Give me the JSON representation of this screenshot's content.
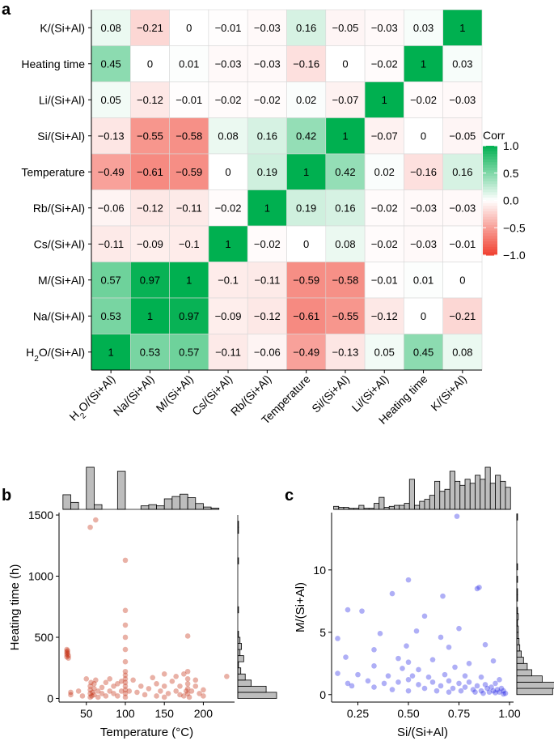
{
  "panel_labels": {
    "a": "a",
    "b": "b",
    "c": "c"
  },
  "chart_data": [
    {
      "type": "heatmap",
      "panel": "a",
      "variables": [
        "H2O/(Si+Al)",
        "Na/(Si+Al)",
        "M/(Si+Al)",
        "Cs/(Si+Al)",
        "Rb/(Si+Al)",
        "Temperature",
        "Si/(Si+Al)",
        "Li/(Si+Al)",
        "Heating time",
        "K/(Si+Al)"
      ],
      "row_labels_top_to_bottom": [
        "K/(Si+Al)",
        "Heating time",
        "Li/(Si+Al)",
        "Si/(Si+Al)",
        "Temperature",
        "Rb/(Si+Al)",
        "Cs/(Si+Al)",
        "M/(Si+Al)",
        "Na/(Si+Al)",
        "H2O/(Si+Al)"
      ],
      "col_labels": [
        "H2O/(Si+Al)",
        "Na/(Si+Al)",
        "M/(Si+Al)",
        "Cs/(Si+Al)",
        "Rb/(Si+Al)",
        "Temperature",
        "Si/(Si+Al)",
        "Li/(Si+Al)",
        "Heating time",
        "K/(Si+Al)"
      ],
      "matrix_rows_top_to_bottom": [
        [
          0.08,
          -0.21,
          0,
          -0.01,
          -0.03,
          0.16,
          -0.05,
          -0.03,
          0.03,
          1
        ],
        [
          0.45,
          0,
          0.01,
          -0.03,
          -0.03,
          -0.16,
          0,
          -0.02,
          1,
          0.03
        ],
        [
          0.05,
          -0.12,
          -0.01,
          -0.02,
          -0.02,
          0.02,
          -0.07,
          1,
          -0.02,
          -0.03
        ],
        [
          -0.13,
          -0.55,
          -0.58,
          0.08,
          0.16,
          0.42,
          1,
          -0.07,
          0,
          -0.05
        ],
        [
          -0.49,
          -0.61,
          -0.59,
          0,
          0.19,
          1,
          0.42,
          0.02,
          -0.16,
          0.16
        ],
        [
          -0.06,
          -0.12,
          -0.11,
          -0.02,
          1,
          0.19,
          0.16,
          -0.02,
          -0.03,
          -0.03
        ],
        [
          -0.11,
          -0.09,
          -0.1,
          1,
          -0.02,
          0,
          0.08,
          -0.02,
          -0.03,
          -0.01
        ],
        [
          0.57,
          0.97,
          1,
          -0.1,
          -0.11,
          -0.59,
          -0.58,
          -0.01,
          0.01,
          0
        ],
        [
          0.53,
          1,
          0.97,
          -0.09,
          -0.12,
          -0.61,
          -0.55,
          -0.12,
          0,
          -0.21
        ],
        [
          1,
          0.53,
          0.57,
          -0.11,
          -0.06,
          -0.49,
          -0.13,
          0.05,
          0.45,
          0.08
        ]
      ],
      "legend": {
        "title": "Corr",
        "ticks": [
          "1.0",
          "0.5",
          "0.0",
          "−0.5",
          "−1.0"
        ],
        "range": [
          -1,
          1
        ]
      },
      "colors": {
        "positive": "#00b050",
        "neutral": "#ffffff",
        "negative": "#f04030"
      }
    },
    {
      "type": "scatter",
      "panel": "b",
      "xlabel": "Temperature (°C)",
      "ylabel": "Heating time (h)",
      "xlim": [
        15,
        240
      ],
      "ylim": [
        -30,
        1520
      ],
      "xticks": [
        50,
        100,
        150,
        200
      ],
      "yticks": [
        0,
        500,
        1000,
        1500
      ],
      "color": "#c02000",
      "points": [
        [
          25,
          400
        ],
        [
          25,
          380
        ],
        [
          25,
          360
        ],
        [
          25,
          340
        ],
        [
          26,
          390
        ],
        [
          26,
          370
        ],
        [
          27,
          350
        ],
        [
          27,
          330
        ],
        [
          55,
          1400
        ],
        [
          62,
          1460
        ],
        [
          100,
          1130
        ],
        [
          100,
          720
        ],
        [
          100,
          600
        ],
        [
          100,
          500
        ],
        [
          100,
          400
        ],
        [
          100,
          300
        ],
        [
          180,
          510
        ],
        [
          30,
          50
        ],
        [
          30,
          30
        ],
        [
          40,
          60
        ],
        [
          45,
          20
        ],
        [
          50,
          160
        ],
        [
          55,
          10
        ],
        [
          55,
          40
        ],
        [
          55,
          70
        ],
        [
          55,
          100
        ],
        [
          56,
          130
        ],
        [
          57,
          20
        ],
        [
          58,
          50
        ],
        [
          60,
          30
        ],
        [
          60,
          80
        ],
        [
          60,
          120
        ],
        [
          62,
          150
        ],
        [
          65,
          10
        ],
        [
          65,
          60
        ],
        [
          70,
          40
        ],
        [
          70,
          90
        ],
        [
          75,
          20
        ],
        [
          75,
          130
        ],
        [
          80,
          160
        ],
        [
          80,
          60
        ],
        [
          85,
          40
        ],
        [
          85,
          100
        ],
        [
          90,
          120
        ],
        [
          90,
          20
        ],
        [
          95,
          60
        ],
        [
          95,
          140
        ],
        [
          100,
          10
        ],
        [
          100,
          40
        ],
        [
          100,
          70
        ],
        [
          100,
          100
        ],
        [
          100,
          130
        ],
        [
          100,
          160
        ],
        [
          100,
          190
        ],
        [
          100,
          220
        ],
        [
          105,
          60
        ],
        [
          110,
          150
        ],
        [
          115,
          50
        ],
        [
          120,
          100
        ],
        [
          125,
          30
        ],
        [
          130,
          80
        ],
        [
          135,
          170
        ],
        [
          140,
          20
        ],
        [
          140,
          120
        ],
        [
          145,
          60
        ],
        [
          150,
          10
        ],
        [
          150,
          100
        ],
        [
          150,
          200
        ],
        [
          155,
          40
        ],
        [
          160,
          140
        ],
        [
          165,
          60
        ],
        [
          165,
          180
        ],
        [
          170,
          30
        ],
        [
          170,
          100
        ],
        [
          175,
          20
        ],
        [
          175,
          200
        ],
        [
          178,
          60
        ],
        [
          180,
          40
        ],
        [
          180,
          80
        ],
        [
          180,
          120
        ],
        [
          180,
          160
        ],
        [
          180,
          220
        ],
        [
          182,
          10
        ],
        [
          185,
          60
        ],
        [
          190,
          100
        ],
        [
          190,
          150
        ],
        [
          195,
          40
        ],
        [
          200,
          70
        ],
        [
          200,
          20
        ],
        [
          230,
          180
        ]
      ],
      "top_histogram": {
        "bin_start": 20,
        "bin_width": 10,
        "counts": [
          25,
          12,
          0,
          72,
          8,
          0,
          0,
          65,
          0,
          0,
          6,
          8,
          6,
          18,
          22,
          26,
          20,
          10,
          4,
          2
        ]
      },
      "right_histogram": {
        "bin_start": 0,
        "bin_width": 50,
        "counts": [
          52,
          38,
          18,
          10,
          4,
          1,
          8,
          3,
          5,
          3,
          1,
          0,
          0,
          0,
          1,
          0,
          0,
          0,
          0,
          0,
          0,
          0,
          1,
          0,
          0,
          0,
          0,
          1,
          1,
          0
        ]
      }
    },
    {
      "type": "scatter",
      "panel": "c",
      "xlabel": "Si/(Si+Al)",
      "ylabel": "M/(Si+Al)",
      "xlim": [
        0.12,
        1.02
      ],
      "ylim": [
        -0.6,
        14.6
      ],
      "xticks": [
        0.25,
        0.5,
        0.75,
        1.0
      ],
      "xticklabels": [
        "0.25",
        "0.50",
        "0.75",
        "1.00"
      ],
      "yticks": [
        0,
        5,
        10
      ],
      "color": "#1a1ae6",
      "points": [
        [
          0.74,
          14.3
        ],
        [
          0.5,
          9.2
        ],
        [
          0.85,
          8.6
        ],
        [
          0.84,
          8.5
        ],
        [
          0.42,
          8.1
        ],
        [
          0.67,
          7.9
        ],
        [
          0.2,
          6.8
        ],
        [
          0.27,
          6.7
        ],
        [
          0.58,
          6.3
        ],
        [
          0.75,
          5.3
        ],
        [
          0.54,
          5.1
        ],
        [
          0.36,
          4.9
        ],
        [
          0.66,
          4.6
        ],
        [
          0.15,
          4.5
        ],
        [
          0.88,
          4.0
        ],
        [
          0.49,
          3.9
        ],
        [
          0.33,
          3.6
        ],
        [
          0.7,
          3.8
        ],
        [
          0.19,
          3.0
        ],
        [
          0.45,
          2.9
        ],
        [
          0.5,
          2.6
        ],
        [
          0.62,
          2.8
        ],
        [
          0.8,
          2.5
        ],
        [
          0.92,
          2.7
        ],
        [
          0.33,
          2.3
        ],
        [
          0.47,
          2.1
        ],
        [
          0.55,
          2.0
        ],
        [
          0.73,
          2.2
        ],
        [
          0.15,
          1.7
        ],
        [
          0.25,
          1.6
        ],
        [
          0.4,
          1.5
        ],
        [
          0.52,
          1.5
        ],
        [
          0.6,
          1.4
        ],
        [
          0.68,
          1.6
        ],
        [
          0.78,
          1.5
        ],
        [
          0.86,
          1.4
        ],
        [
          0.95,
          1.2
        ],
        [
          0.3,
          1.1
        ],
        [
          0.38,
          0.9
        ],
        [
          0.45,
          1.0
        ],
        [
          0.5,
          1.2
        ],
        [
          0.55,
          0.8
        ],
        [
          0.62,
          1.0
        ],
        [
          0.66,
          0.7
        ],
        [
          0.7,
          1.1
        ],
        [
          0.72,
          0.5
        ],
        [
          0.75,
          0.9
        ],
        [
          0.78,
          0.6
        ],
        [
          0.8,
          1.0
        ],
        [
          0.82,
          0.4
        ],
        [
          0.84,
          0.7
        ],
        [
          0.86,
          0.3
        ],
        [
          0.88,
          0.8
        ],
        [
          0.89,
          0.5
        ],
        [
          0.9,
          0.2
        ],
        [
          0.91,
          0.6
        ],
        [
          0.92,
          0.3
        ],
        [
          0.93,
          0.9
        ],
        [
          0.94,
          0.4
        ],
        [
          0.95,
          0.2
        ],
        [
          0.96,
          0.5
        ],
        [
          0.97,
          0.3
        ],
        [
          0.98,
          0.1
        ],
        [
          0.2,
          0.9
        ],
        [
          0.22,
          0.7
        ],
        [
          0.33,
          0.6
        ],
        [
          0.42,
          0.4
        ],
        [
          0.5,
          0.3
        ],
        [
          0.58,
          0.5
        ],
        [
          0.64,
          0.3
        ],
        [
          0.7,
          0.2
        ],
        [
          0.76,
          0.3
        ],
        [
          0.83,
          0.2
        ],
        [
          0.87,
          0.1
        ],
        [
          0.93,
          0.15
        ],
        [
          0.97,
          0.05
        ]
      ],
      "top_histogram": {
        "bin_start": 0.13,
        "bin_width": 0.025,
        "counts": [
          3,
          2,
          2,
          1,
          1,
          4,
          1,
          1,
          6,
          12,
          2,
          3,
          4,
          4,
          6,
          30,
          4,
          8,
          10,
          14,
          28,
          18,
          20,
          38,
          28,
          24,
          30,
          26,
          34,
          30,
          42,
          26,
          34,
          28,
          22
        ]
      },
      "right_histogram": {
        "bin_start": 0,
        "bin_width": 0.5,
        "counts": [
          48,
          52,
          34,
          20,
          14,
          9,
          6,
          4,
          3,
          2,
          2,
          1,
          2,
          1,
          0,
          1,
          1,
          0,
          1,
          0,
          1,
          0,
          0,
          0,
          0,
          0,
          0,
          0,
          1
        ]
      }
    }
  ]
}
